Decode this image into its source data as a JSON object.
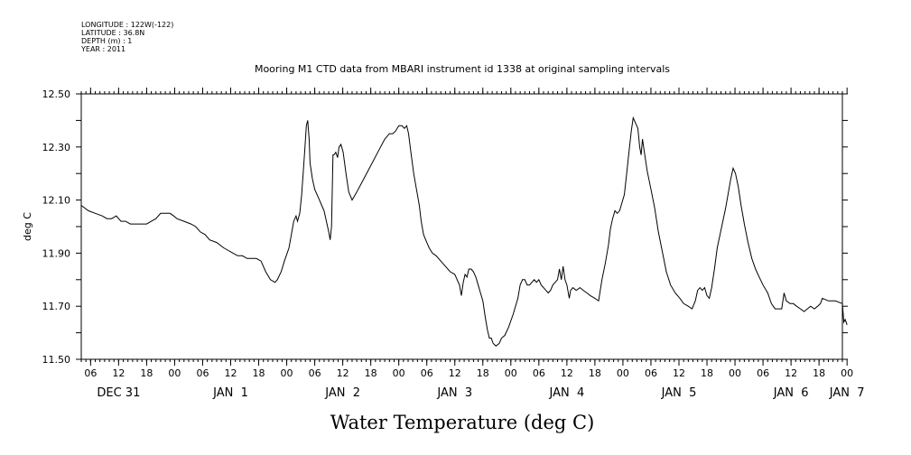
{
  "header": {
    "meta_lines": [
      "LONGITUDE : 122W(-122)",
      "LATITUDE : 36.8N",
      "DEPTH (m) : 1",
      "YEAR : 2011"
    ]
  },
  "chart_data": {
    "type": "line",
    "title": "Mooring M1 CTD data from MBARI instrument id 1338 at original sampling intervals",
    "xlabel": "Water Temperature (deg C)",
    "ylabel": "deg C",
    "ylim": [
      11.5,
      12.5
    ],
    "yticks": [
      11.5,
      11.7,
      11.9,
      12.1,
      12.3,
      12.5
    ],
    "ytick_labels": [
      "11.50",
      "11.70",
      "11.90",
      "12.10",
      "12.30",
      "12.50"
    ],
    "xlim": [
      4,
      167
    ],
    "x_unit": "hours from 2010-12-31 00:00",
    "xtick_hours": [
      6,
      12,
      18,
      24,
      30,
      36,
      42,
      48,
      54,
      60,
      66,
      72,
      78,
      84,
      90,
      96,
      102,
      108,
      114,
      120,
      126,
      132,
      138,
      144,
      150,
      156,
      162,
      168
    ],
    "xtick_labels": [
      "06",
      "12",
      "18",
      "00",
      "06",
      "12",
      "18",
      "00",
      "06",
      "12",
      "18",
      "00",
      "06",
      "12",
      "18",
      "00",
      "06",
      "12",
      "18",
      "00",
      "06",
      "12",
      "18",
      "00",
      "06",
      "12",
      "18",
      "00"
    ],
    "day_labels": [
      {
        "text": "DEC 31",
        "hour": 12
      },
      {
        "text": "JAN  1",
        "hour": 36
      },
      {
        "text": "JAN  2",
        "hour": 60
      },
      {
        "text": "JAN  3",
        "hour": 84
      },
      {
        "text": "JAN  4",
        "hour": 108
      },
      {
        "text": "JAN  5",
        "hour": 132
      },
      {
        "text": "JAN  6",
        "hour": 156
      },
      {
        "text": "JAN  7",
        "hour": 168
      }
    ],
    "grid": false,
    "series": [
      {
        "color": "#000000",
        "points": [
          [
            4.0,
            12.08
          ],
          [
            5.5,
            12.06
          ],
          [
            7.0,
            12.05
          ],
          [
            8.5,
            12.04
          ],
          [
            9.5,
            12.03
          ],
          [
            10.5,
            12.03
          ],
          [
            11.5,
            12.04
          ],
          [
            12.5,
            12.02
          ],
          [
            13.5,
            12.02
          ],
          [
            14.5,
            12.01
          ],
          [
            15.5,
            12.01
          ],
          [
            16.5,
            12.01
          ],
          [
            18.0,
            12.01
          ],
          [
            19.0,
            12.02
          ],
          [
            20.0,
            12.03
          ],
          [
            21.0,
            12.05
          ],
          [
            22.0,
            12.05
          ],
          [
            23.0,
            12.05
          ],
          [
            23.8,
            12.04
          ],
          [
            24.5,
            12.03
          ],
          [
            26.0,
            12.02
          ],
          [
            27.5,
            12.01
          ],
          [
            28.5,
            12.0
          ],
          [
            29.5,
            11.98
          ],
          [
            30.5,
            11.97
          ],
          [
            31.5,
            11.95
          ],
          [
            33.0,
            11.94
          ],
          [
            34.5,
            11.92
          ],
          [
            35.5,
            11.91
          ],
          [
            36.5,
            11.9
          ],
          [
            37.5,
            11.89
          ],
          [
            38.5,
            11.89
          ],
          [
            39.5,
            11.88
          ],
          [
            40.5,
            11.88
          ],
          [
            41.5,
            11.88
          ],
          [
            42.5,
            11.87
          ],
          [
            43.5,
            11.83
          ],
          [
            44.5,
            11.8
          ],
          [
            45.5,
            11.79
          ],
          [
            46.0,
            11.8
          ],
          [
            46.8,
            11.83
          ],
          [
            47.5,
            11.87
          ],
          [
            48.5,
            11.92
          ],
          [
            49.0,
            11.97
          ],
          [
            49.5,
            12.02
          ],
          [
            50.0,
            12.04
          ],
          [
            50.3,
            12.02
          ],
          [
            50.8,
            12.05
          ],
          [
            51.2,
            12.12
          ],
          [
            51.8,
            12.27
          ],
          [
            52.2,
            12.38
          ],
          [
            52.5,
            12.4
          ],
          [
            52.8,
            12.33
          ],
          [
            53.0,
            12.24
          ],
          [
            53.5,
            12.18
          ],
          [
            54.0,
            12.14
          ],
          [
            54.5,
            12.12
          ],
          [
            55.0,
            12.1
          ],
          [
            55.5,
            12.08
          ],
          [
            56.0,
            12.06
          ],
          [
            56.5,
            12.02
          ],
          [
            57.0,
            11.98
          ],
          [
            57.3,
            11.95
          ],
          [
            57.6,
            12.0
          ],
          [
            57.9,
            12.27
          ],
          [
            58.1,
            12.27
          ],
          [
            58.5,
            12.28
          ],
          [
            58.9,
            12.26
          ],
          [
            59.2,
            12.3
          ],
          [
            59.6,
            12.31
          ],
          [
            60.1,
            12.28
          ],
          [
            60.7,
            12.2
          ],
          [
            61.3,
            12.13
          ],
          [
            62.0,
            12.1
          ],
          [
            63.0,
            12.13
          ],
          [
            64.5,
            12.18
          ],
          [
            66.0,
            12.23
          ],
          [
            67.5,
            12.28
          ],
          [
            69.0,
            12.33
          ],
          [
            70.0,
            12.35
          ],
          [
            70.7,
            12.35
          ],
          [
            71.3,
            12.36
          ],
          [
            72.0,
            12.38
          ],
          [
            72.7,
            12.38
          ],
          [
            73.2,
            12.37
          ],
          [
            73.7,
            12.38
          ],
          [
            74.1,
            12.35
          ],
          [
            74.6,
            12.28
          ],
          [
            75.2,
            12.2
          ],
          [
            75.8,
            12.14
          ],
          [
            76.4,
            12.08
          ],
          [
            76.8,
            12.02
          ],
          [
            77.3,
            11.97
          ],
          [
            78.0,
            11.94
          ],
          [
            78.5,
            11.92
          ],
          [
            79.2,
            11.9
          ],
          [
            80.0,
            11.89
          ],
          [
            81.0,
            11.87
          ],
          [
            82.0,
            11.85
          ],
          [
            83.0,
            11.83
          ],
          [
            84.0,
            11.82
          ],
          [
            84.5,
            11.8
          ],
          [
            85.0,
            11.78
          ],
          [
            85.4,
            11.74
          ],
          [
            85.8,
            11.79
          ],
          [
            86.2,
            11.82
          ],
          [
            86.6,
            11.81
          ],
          [
            87.0,
            11.84
          ],
          [
            87.5,
            11.84
          ],
          [
            88.0,
            11.83
          ],
          [
            88.5,
            11.81
          ],
          [
            89.0,
            11.78
          ],
          [
            89.5,
            11.75
          ],
          [
            90.0,
            11.72
          ],
          [
            90.5,
            11.66
          ],
          [
            91.0,
            11.61
          ],
          [
            91.4,
            11.58
          ],
          [
            91.8,
            11.58
          ],
          [
            92.2,
            11.56
          ],
          [
            92.8,
            11.55
          ],
          [
            93.5,
            11.56
          ],
          [
            94.0,
            11.58
          ],
          [
            94.7,
            11.59
          ],
          [
            95.5,
            11.62
          ],
          [
            96.5,
            11.67
          ],
          [
            97.5,
            11.73
          ],
          [
            98.0,
            11.78
          ],
          [
            98.5,
            11.8
          ],
          [
            99.0,
            11.8
          ],
          [
            99.5,
            11.78
          ],
          [
            100.0,
            11.78
          ],
          [
            100.5,
            11.79
          ],
          [
            101.0,
            11.8
          ],
          [
            101.5,
            11.79
          ],
          [
            102.0,
            11.8
          ],
          [
            102.5,
            11.78
          ],
          [
            103.0,
            11.77
          ],
          [
            103.5,
            11.76
          ],
          [
            104.0,
            11.75
          ],
          [
            104.5,
            11.76
          ],
          [
            105.0,
            11.78
          ],
          [
            105.5,
            11.79
          ],
          [
            106.0,
            11.8
          ],
          [
            106.4,
            11.84
          ],
          [
            106.8,
            11.8
          ],
          [
            107.2,
            11.85
          ],
          [
            107.6,
            11.8
          ],
          [
            108.0,
            11.78
          ],
          [
            108.5,
            11.73
          ],
          [
            108.8,
            11.76
          ],
          [
            109.3,
            11.77
          ],
          [
            110.0,
            11.76
          ],
          [
            110.8,
            11.77
          ],
          [
            111.5,
            11.76
          ],
          [
            112.3,
            11.75
          ],
          [
            113.0,
            11.74
          ],
          [
            114.0,
            11.73
          ],
          [
            114.8,
            11.72
          ],
          [
            115.5,
            11.8
          ],
          [
            116.2,
            11.86
          ],
          [
            116.9,
            11.93
          ],
          [
            117.3,
            11.99
          ],
          [
            117.8,
            12.03
          ],
          [
            118.3,
            12.06
          ],
          [
            118.8,
            12.05
          ],
          [
            119.3,
            12.06
          ],
          [
            119.8,
            12.09
          ],
          [
            120.3,
            12.12
          ],
          [
            120.8,
            12.2
          ],
          [
            121.3,
            12.28
          ],
          [
            121.8,
            12.36
          ],
          [
            122.2,
            12.41
          ],
          [
            122.7,
            12.39
          ],
          [
            123.2,
            12.37
          ],
          [
            123.6,
            12.3
          ],
          [
            123.9,
            12.27
          ],
          [
            124.2,
            12.33
          ],
          [
            124.6,
            12.28
          ],
          [
            125.2,
            12.21
          ],
          [
            126.0,
            12.14
          ],
          [
            126.8,
            12.07
          ],
          [
            127.6,
            11.98
          ],
          [
            128.5,
            11.9
          ],
          [
            129.3,
            11.83
          ],
          [
            130.2,
            11.78
          ],
          [
            131.2,
            11.75
          ],
          [
            132.2,
            11.73
          ],
          [
            133.0,
            11.71
          ],
          [
            134.0,
            11.7
          ],
          [
            134.8,
            11.69
          ],
          [
            135.5,
            11.72
          ],
          [
            136.0,
            11.76
          ],
          [
            136.5,
            11.77
          ],
          [
            137.0,
            11.76
          ],
          [
            137.5,
            11.77
          ],
          [
            138.0,
            11.74
          ],
          [
            138.5,
            11.73
          ],
          [
            139.0,
            11.77
          ],
          [
            139.6,
            11.84
          ],
          [
            140.2,
            11.92
          ],
          [
            140.8,
            11.97
          ],
          [
            141.4,
            12.02
          ],
          [
            142.0,
            12.07
          ],
          [
            142.6,
            12.13
          ],
          [
            143.1,
            12.18
          ],
          [
            143.6,
            12.22
          ],
          [
            144.1,
            12.2
          ],
          [
            144.7,
            12.15
          ],
          [
            145.3,
            12.08
          ],
          [
            146.0,
            12.01
          ],
          [
            146.8,
            11.94
          ],
          [
            147.6,
            11.88
          ],
          [
            148.4,
            11.84
          ],
          [
            149.2,
            11.81
          ],
          [
            150.0,
            11.78
          ],
          [
            151.0,
            11.75
          ],
          [
            151.8,
            11.71
          ],
          [
            152.6,
            11.69
          ],
          [
            153.4,
            11.69
          ],
          [
            154.0,
            11.69
          ],
          [
            154.5,
            11.75
          ],
          [
            155.0,
            11.72
          ],
          [
            155.8,
            11.71
          ],
          [
            156.5,
            11.71
          ],
          [
            157.2,
            11.7
          ],
          [
            158.0,
            11.69
          ],
          [
            158.8,
            11.68
          ],
          [
            159.5,
            11.69
          ],
          [
            160.2,
            11.7
          ],
          [
            161.0,
            11.69
          ],
          [
            161.7,
            11.7
          ],
          [
            162.3,
            11.71
          ],
          [
            162.7,
            11.73
          ],
          [
            164.0,
            11.72
          ],
          [
            165.5,
            11.72
          ],
          [
            167.0,
            11.71
          ],
          [
            167.3,
            11.64
          ],
          [
            167.6,
            11.65
          ],
          [
            168.0,
            11.63
          ]
        ]
      }
    ]
  }
}
